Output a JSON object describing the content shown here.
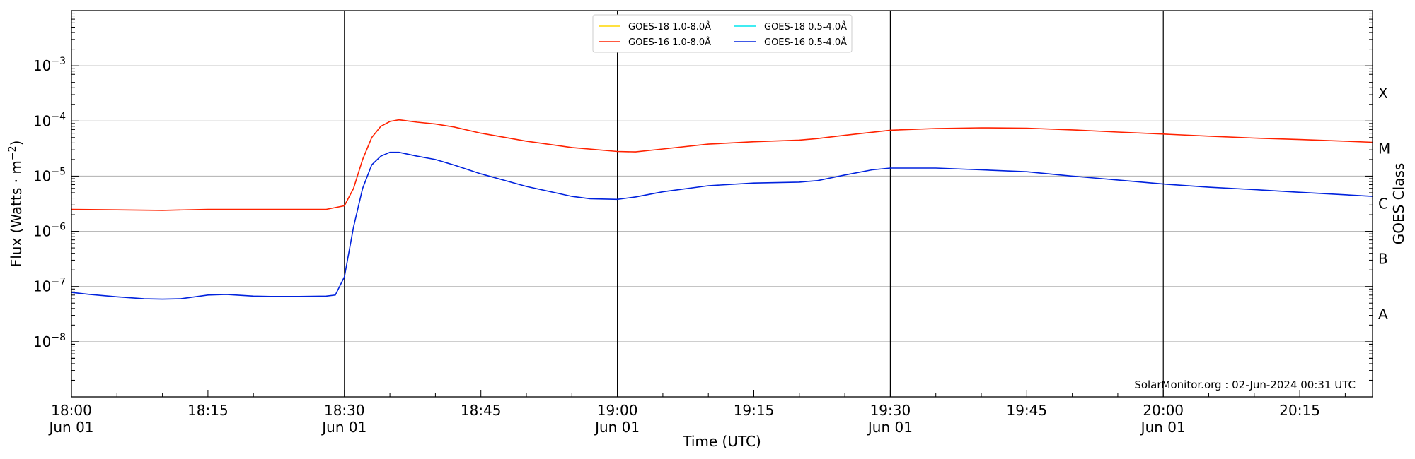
{
  "chart_data": {
    "type": "line",
    "xlabel": "Time (UTC)",
    "ylabel_main": "Flux (Watts · m",
    "ylabel_sup": "−2",
    "ylabel_close": ")",
    "y2label": "GOES Class",
    "y_scale": "log",
    "ylim": [
      1e-09,
      0.01
    ],
    "xlim": [
      "18:00",
      "20:23"
    ],
    "grid": "horizontal at decades; vertical lines at half-hour marks",
    "legend_position": "top-center",
    "x_ticks": [
      {
        "time": "18:00",
        "label": "18:00",
        "sub": "Jun 01"
      },
      {
        "time": "18:15",
        "label": "18:15",
        "sub": ""
      },
      {
        "time": "18:30",
        "label": "18:30",
        "sub": "Jun 01"
      },
      {
        "time": "18:45",
        "label": "18:45",
        "sub": ""
      },
      {
        "time": "19:00",
        "label": "19:00",
        "sub": "Jun 01"
      },
      {
        "time": "19:15",
        "label": "19:15",
        "sub": ""
      },
      {
        "time": "19:30",
        "label": "19:30",
        "sub": "Jun 01"
      },
      {
        "time": "19:45",
        "label": "19:45",
        "sub": ""
      },
      {
        "time": "20:00",
        "label": "20:00",
        "sub": "Jun 01"
      },
      {
        "time": "20:15",
        "label": "20:15",
        "sub": ""
      }
    ],
    "vlines": [
      "18:30",
      "19:00",
      "19:30",
      "20:00"
    ],
    "y_ticks": [
      {
        "exp": -8,
        "label": "10",
        "sup": "−8"
      },
      {
        "exp": -7,
        "label": "10",
        "sup": "−7"
      },
      {
        "exp": -6,
        "label": "10",
        "sup": "−6"
      },
      {
        "exp": -5,
        "label": "10",
        "sup": "−5"
      },
      {
        "exp": -4,
        "label": "10",
        "sup": "−4"
      },
      {
        "exp": -3,
        "label": "10",
        "sup": "−3"
      }
    ],
    "gridlines": [
      -8,
      -7,
      -6,
      -5,
      -4,
      -3
    ],
    "goes_classes": [
      {
        "label": "A",
        "exp": -7.5
      },
      {
        "label": "B",
        "exp": -6.5
      },
      {
        "label": "C",
        "exp": -5.5
      },
      {
        "label": "M",
        "exp": -4.5
      },
      {
        "label": "X",
        "exp": -3.5
      }
    ],
    "legend": [
      {
        "label": "GOES-18 1.0-8.0Å",
        "color": "#ffd700"
      },
      {
        "label": "GOES-18 0.5-4.0Å",
        "color": "#00e5ee"
      },
      {
        "label": "GOES-16 1.0-8.0Å",
        "color": "#ff2200"
      },
      {
        "label": "GOES-16 0.5-4.0Å",
        "color": "#0022dd"
      }
    ],
    "credit": "SolarMonitor.org : 02-Jun-2024 00:31 UTC",
    "series": [
      {
        "name": "GOES-16 1.0-8.0Å",
        "color": "#ff2200",
        "x": [
          "18:00",
          "18:05",
          "18:10",
          "18:15",
          "18:20",
          "18:25",
          "18:28",
          "18:30",
          "18:31",
          "18:32",
          "18:33",
          "18:34",
          "18:35",
          "18:36",
          "18:37",
          "18:38",
          "18:40",
          "18:42",
          "18:45",
          "18:50",
          "18:55",
          "19:00",
          "19:02",
          "19:05",
          "19:10",
          "19:15",
          "19:20",
          "19:22",
          "19:25",
          "19:30",
          "19:35",
          "19:40",
          "19:45",
          "19:50",
          "19:55",
          "20:00",
          "20:05",
          "20:10",
          "20:15",
          "20:20",
          "20:23"
        ],
        "values": [
          2.5e-06,
          2.45e-06,
          2.4e-06,
          2.5e-06,
          2.5e-06,
          2.5e-06,
          2.5e-06,
          2.9e-06,
          6e-06,
          2e-05,
          5e-05,
          8e-05,
          9.8e-05,
          0.000105,
          0.0001,
          9.5e-05,
          8.8e-05,
          7.8e-05,
          6e-05,
          4.3e-05,
          3.3e-05,
          2.8e-05,
          2.75e-05,
          3.1e-05,
          3.8e-05,
          4.2e-05,
          4.5e-05,
          4.8e-05,
          5.5e-05,
          6.8e-05,
          7.3e-05,
          7.5e-05,
          7.4e-05,
          6.9e-05,
          6.3e-05,
          5.8e-05,
          5.3e-05,
          4.9e-05,
          4.6e-05,
          4.3e-05,
          4.1e-05
        ]
      },
      {
        "name": "GOES-16 0.5-4.0Å",
        "color": "#0022dd",
        "x": [
          "18:00",
          "18:02",
          "18:05",
          "18:08",
          "18:10",
          "18:12",
          "18:15",
          "18:17",
          "18:20",
          "18:22",
          "18:25",
          "18:28",
          "18:29",
          "18:30",
          "18:31",
          "18:32",
          "18:33",
          "18:34",
          "18:35",
          "18:36",
          "18:38",
          "18:40",
          "18:42",
          "18:45",
          "18:50",
          "18:55",
          "18:57",
          "19:00",
          "19:02",
          "19:05",
          "19:10",
          "19:15",
          "19:20",
          "19:22",
          "19:25",
          "19:28",
          "19:30",
          "19:35",
          "19:40",
          "19:45",
          "19:50",
          "19:55",
          "20:00",
          "20:05",
          "20:10",
          "20:15",
          "20:20",
          "20:23"
        ],
        "values": [
          7.8e-08,
          7.2e-08,
          6.5e-08,
          6e-08,
          5.9e-08,
          6e-08,
          7e-08,
          7.2e-08,
          6.7e-08,
          6.6e-08,
          6.6e-08,
          6.7e-08,
          7e-08,
          1.5e-07,
          1.2e-06,
          6e-06,
          1.6e-05,
          2.3e-05,
          2.7e-05,
          2.7e-05,
          2.3e-05,
          2e-05,
          1.6e-05,
          1.1e-05,
          6.5e-06,
          4.3e-06,
          3.9e-06,
          3.8e-06,
          4.2e-06,
          5.2e-06,
          6.7e-06,
          7.5e-06,
          7.8e-06,
          8.3e-06,
          1.05e-05,
          1.3e-05,
          1.4e-05,
          1.4e-05,
          1.3e-05,
          1.2e-05,
          1e-05,
          8.5e-06,
          7.2e-06,
          6.3e-06,
          5.7e-06,
          5.1e-06,
          4.6e-06,
          4.3e-06
        ]
      }
    ]
  }
}
